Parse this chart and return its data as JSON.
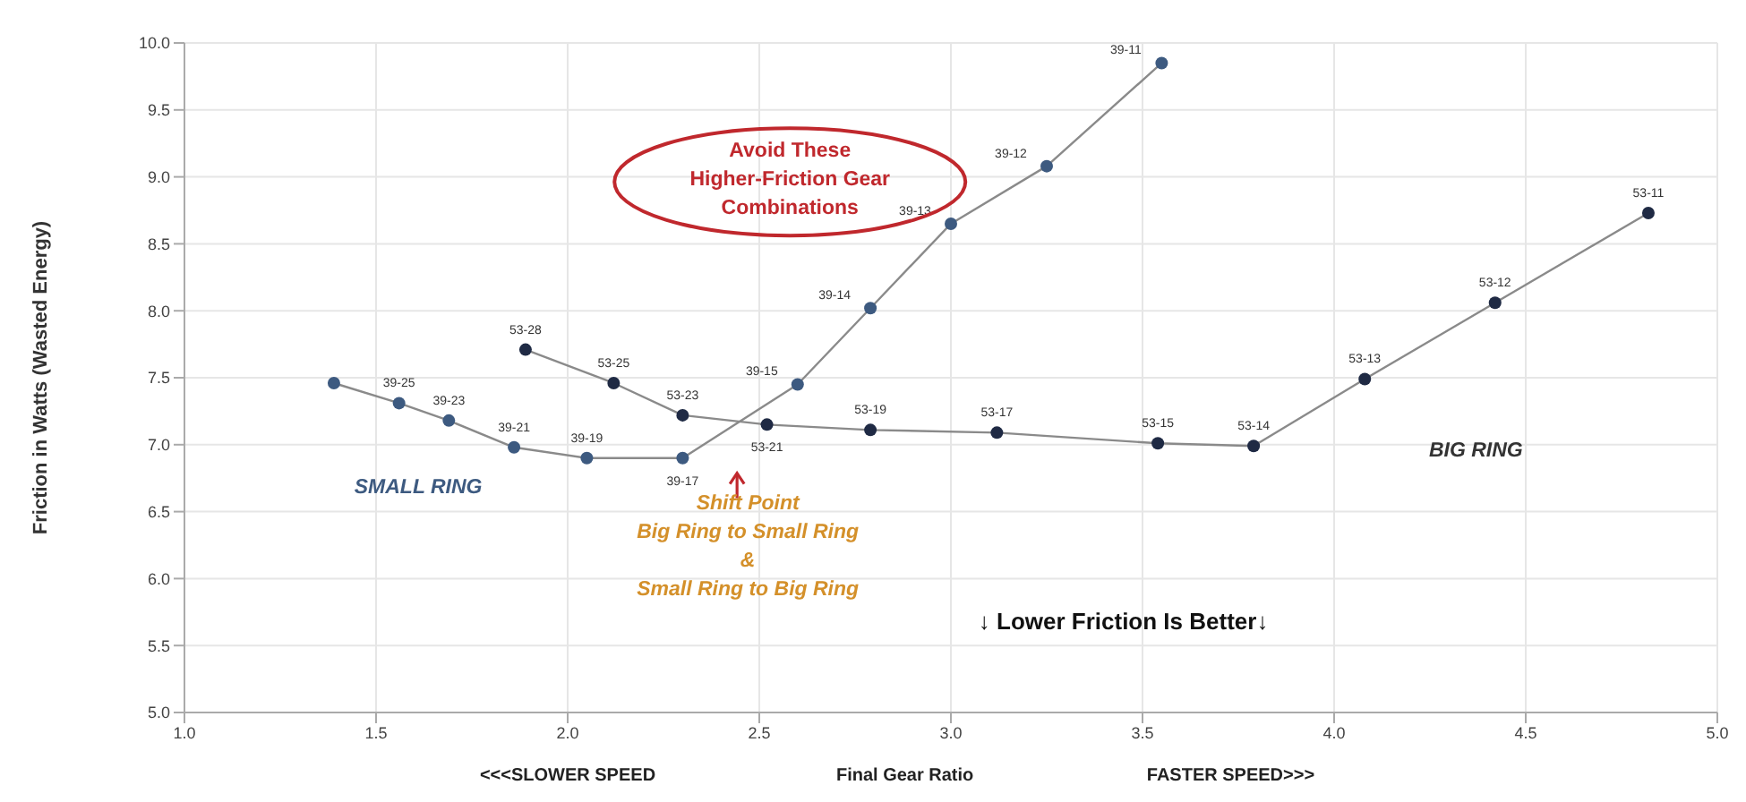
{
  "chart_data": {
    "type": "line",
    "xlabel": "Final Gear Ratio",
    "ylabel": "Friction in Watts (Wasted Energy)",
    "xlim": [
      1.0,
      5.0
    ],
    "xticks": [
      {
        "value": 1,
        "label": "1.0"
      },
      {
        "value": 1.5,
        "label": "1.5"
      },
      {
        "value": 2,
        "label": "2.0"
      },
      {
        "value": 2.5,
        "label": "2.5"
      },
      {
        "value": 3,
        "label": "3.0"
      },
      {
        "value": 3.5,
        "label": "3.5"
      },
      {
        "value": 4,
        "label": "4.0"
      },
      {
        "value": 4.5,
        "label": "4.5"
      },
      {
        "value": 5,
        "label": "5.0"
      }
    ],
    "ylim": [
      5.0,
      10.0
    ],
    "yticks": [
      {
        "value": 5,
        "label": "5.0"
      },
      {
        "value": 5.5,
        "label": "5.5"
      },
      {
        "value": 6,
        "label": "6.0"
      },
      {
        "value": 6.5,
        "label": "6.5"
      },
      {
        "value": 7,
        "label": "7.0"
      },
      {
        "value": 7.5,
        "label": "7.5"
      },
      {
        "value": 8,
        "label": "8.0"
      },
      {
        "value": 8.5,
        "label": "8.5"
      },
      {
        "value": 9,
        "label": "9.0"
      },
      {
        "value": 9.5,
        "label": "9.5"
      },
      {
        "value": 10,
        "label": "10.0"
      }
    ],
    "grid": true,
    "legend": false,
    "marker": "circle",
    "line_style": "solid",
    "series": [
      {
        "name": "SMALL RING",
        "color": "#3d5a80",
        "x": [
          1.39,
          1.56,
          1.69,
          1.86,
          2.05,
          2.3,
          2.6,
          2.79,
          3.0,
          3.25,
          3.55
        ],
        "values": [
          7.46,
          7.31,
          7.18,
          6.98,
          6.9,
          6.9,
          7.45,
          8.02,
          8.65,
          9.08,
          9.85
        ]
      },
      {
        "name": "BIG RING",
        "color": "#1f2a44",
        "x": [
          1.89,
          2.12,
          2.3,
          2.52,
          2.79,
          3.12,
          3.54,
          3.79,
          4.08,
          4.42,
          4.82
        ],
        "values": [
          7.71,
          7.46,
          7.22,
          7.15,
          7.11,
          7.09,
          7.01,
          6.99,
          7.49,
          8.06,
          8.73
        ]
      }
    ],
    "annotations": [
      {
        "text": "39-25",
        "x": 1.56,
        "y": 7.31
      },
      {
        "text": "39-23",
        "x": 1.69,
        "y": 7.18
      },
      {
        "text": "39-21",
        "x": 1.86,
        "y": 6.98
      },
      {
        "text": "39-19",
        "x": 2.05,
        "y": 6.9
      },
      {
        "text": "39-17",
        "x": 2.3,
        "y": 6.9
      },
      {
        "text": "39-15",
        "x": 2.6,
        "y": 7.45
      },
      {
        "text": "39-14",
        "x": 2.79,
        "y": 8.02
      },
      {
        "text": "39-13",
        "x": 3.0,
        "y": 8.65
      },
      {
        "text": "39-12",
        "x": 3.25,
        "y": 9.08
      },
      {
        "text": "39-11",
        "x": 3.55,
        "y": 9.85
      },
      {
        "text": "53-28",
        "x": 1.89,
        "y": 7.71
      },
      {
        "text": "53-25",
        "x": 2.12,
        "y": 7.46
      },
      {
        "text": "53-23",
        "x": 2.3,
        "y": 7.22
      },
      {
        "text": "53-21",
        "x": 2.52,
        "y": 7.15
      },
      {
        "text": "53-19",
        "x": 2.79,
        "y": 7.11
      },
      {
        "text": "53-17",
        "x": 3.12,
        "y": 7.09
      },
      {
        "text": "53-15",
        "x": 3.54,
        "y": 7.01
      },
      {
        "text": "53-14",
        "x": 3.79,
        "y": 6.99
      },
      {
        "text": "53-13",
        "x": 4.08,
        "y": 7.49
      },
      {
        "text": "53-12",
        "x": 4.42,
        "y": 8.06
      },
      {
        "text": "53-11",
        "x": 4.82,
        "y": 8.73
      },
      "Avoid These\nHigher-Friction Gear\nCombinations",
      "Shift Point\nBig Ring to Small Ring\n&\nSmall Ring to Big Ring",
      "↓ Lower Friction Is Better↓",
      "<<<SLOWER SPEED",
      "FASTER SPEED>>>"
    ]
  }
}
